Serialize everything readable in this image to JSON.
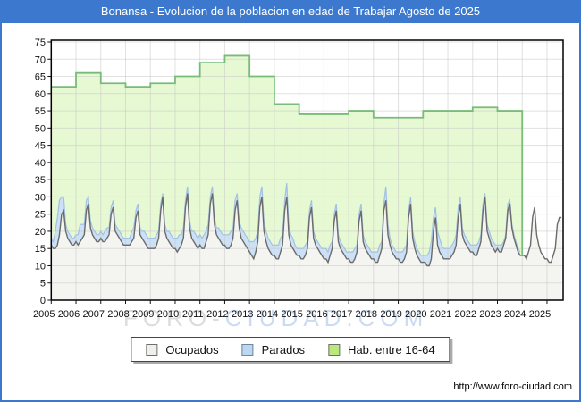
{
  "window": {
    "title": "Bonansa - Evolucion de la poblacion en edad de Trabajar Agosto de 2025"
  },
  "watermark": {
    "part1": "FORO-",
    "part2": "CIUDAD.COM"
  },
  "footer": {
    "url": "http://www.foro-ciudad.com"
  },
  "legend": {
    "items": [
      {
        "label": "Ocupados",
        "fill": "#EFEFEC",
        "border": "#6E6E6E"
      },
      {
        "label": "Parados",
        "fill": "#BDD7F0",
        "border": "#6E86A0"
      },
      {
        "label": "Hab. entre 16-64",
        "fill": "#B9E87E",
        "border": "#6E6E6E"
      }
    ]
  },
  "chart_data": {
    "type": "area",
    "title": "Bonansa - Evolucion de la poblacion en edad de Trabajar Agosto de 2025",
    "xlabel": "",
    "ylabel": "",
    "x_axis": {
      "tick_labels": [
        "2005",
        "2006",
        "2007",
        "2008",
        "2009",
        "2010",
        "2011",
        "2012",
        "2013",
        "2014",
        "2015",
        "2016",
        "2017",
        "2018",
        "2019",
        "2020",
        "2021",
        "2022",
        "2023",
        "2024",
        "2025"
      ]
    },
    "y_axis": {
      "min": 0,
      "max": 75,
      "step": 5,
      "tick_labels": [
        "0",
        "5",
        "10",
        "15",
        "20",
        "25",
        "30",
        "35",
        "40",
        "45",
        "50",
        "55",
        "60",
        "65",
        "70",
        "75"
      ]
    },
    "grid": true,
    "legend_position": "bottom",
    "colors": {
      "grid": "#C8C8C8",
      "plot_border": "#000000",
      "tick_text": "#111111"
    },
    "series": [
      {
        "name": "Hab. entre 16-64",
        "kind": "annual_step",
        "start_year": 2005,
        "values": [
          62,
          66,
          63,
          62,
          63,
          65,
          69,
          71,
          65,
          57,
          54,
          54,
          55,
          53,
          53,
          55,
          55,
          56,
          55
        ],
        "fill": "#E7F9D3",
        "stroke": "#79BC79"
      },
      {
        "name": "Ocupados",
        "kind": "monthly",
        "start": "2005-01",
        "values": [
          16,
          15,
          15,
          16,
          19,
          25,
          26,
          20,
          18,
          17,
          16,
          16,
          17,
          16,
          17,
          18,
          19,
          26,
          28,
          21,
          19,
          18,
          17,
          17,
          18,
          17,
          17,
          18,
          19,
          25,
          27,
          20,
          19,
          18,
          17,
          16,
          16,
          16,
          16,
          17,
          18,
          24,
          26,
          19,
          18,
          17,
          16,
          15,
          15,
          15,
          15,
          16,
          18,
          26,
          30,
          20,
          18,
          17,
          16,
          15,
          15,
          14,
          15,
          16,
          18,
          27,
          31,
          21,
          18,
          17,
          16,
          15,
          16,
          15,
          15,
          17,
          19,
          28,
          31,
          22,
          19,
          18,
          17,
          16,
          16,
          15,
          15,
          16,
          18,
          26,
          29,
          21,
          18,
          17,
          16,
          15,
          14,
          13,
          12,
          14,
          17,
          27,
          30,
          20,
          17,
          15,
          14,
          13,
          13,
          12,
          12,
          14,
          16,
          26,
          30,
          19,
          16,
          15,
          14,
          13,
          13,
          12,
          12,
          13,
          15,
          24,
          27,
          18,
          16,
          15,
          14,
          13,
          12,
          12,
          11,
          13,
          15,
          23,
          26,
          17,
          15,
          14,
          13,
          12,
          12,
          11,
          11,
          12,
          14,
          23,
          26,
          17,
          15,
          14,
          13,
          12,
          12,
          11,
          11,
          13,
          15,
          26,
          29,
          19,
          16,
          14,
          13,
          12,
          12,
          11,
          11,
          12,
          14,
          24,
          28,
          18,
          15,
          13,
          12,
          11,
          11,
          11,
          10,
          10,
          12,
          20,
          24,
          16,
          14,
          13,
          12,
          12,
          12,
          12,
          13,
          14,
          16,
          24,
          28,
          19,
          17,
          16,
          15,
          14,
          14,
          13,
          13,
          15,
          17,
          26,
          30,
          20,
          18,
          16,
          15,
          14,
          15,
          14,
          14,
          16,
          18,
          26,
          28,
          21,
          18,
          16,
          14,
          13,
          13,
          13,
          12,
          14,
          16,
          24,
          27,
          19,
          16,
          14,
          13,
          12,
          12,
          11,
          11,
          13,
          15,
          22,
          24,
          24
        ],
        "fill": "#F4F4F0",
        "stroke": "#6B6B6B"
      },
      {
        "name": "Parados",
        "kind": "monthly_stacked_on_ocupados",
        "start": "2005-01",
        "values": [
          2,
          2,
          5,
          8,
          10,
          5,
          4,
          2,
          2,
          2,
          2,
          2,
          2,
          3,
          5,
          4,
          3,
          3,
          2,
          2,
          2,
          2,
          2,
          2,
          2,
          2,
          3,
          3,
          2,
          2,
          2,
          2,
          2,
          2,
          2,
          2,
          2,
          2,
          2,
          3,
          3,
          2,
          2,
          2,
          2,
          3,
          3,
          3,
          3,
          3,
          3,
          3,
          2,
          2,
          1,
          2,
          2,
          3,
          3,
          3,
          3,
          4,
          4,
          3,
          3,
          2,
          2,
          2,
          2,
          3,
          3,
          3,
          3,
          3,
          4,
          3,
          3,
          2,
          2,
          2,
          2,
          3,
          3,
          3,
          3,
          4,
          4,
          4,
          3,
          3,
          2,
          2,
          3,
          3,
          3,
          3,
          3,
          4,
          5,
          4,
          3,
          3,
          3,
          3,
          3,
          3,
          3,
          3,
          3,
          4,
          4,
          4,
          3,
          3,
          4,
          3,
          3,
          3,
          2,
          2,
          2,
          3,
          3,
          3,
          2,
          2,
          2,
          2,
          2,
          2,
          2,
          2,
          3,
          3,
          3,
          3,
          2,
          2,
          2,
          2,
          2,
          2,
          2,
          2,
          2,
          3,
          3,
          3,
          2,
          2,
          2,
          2,
          2,
          2,
          2,
          2,
          2,
          3,
          3,
          3,
          2,
          2,
          4,
          3,
          2,
          2,
          2,
          2,
          2,
          3,
          3,
          3,
          2,
          2,
          2,
          2,
          2,
          2,
          2,
          2,
          2,
          2,
          3,
          4,
          5,
          4,
          3,
          4,
          4,
          3,
          3,
          3,
          3,
          3,
          3,
          3,
          3,
          3,
          2,
          2,
          2,
          2,
          2,
          2,
          2,
          3,
          3,
          2,
          2,
          2,
          1,
          2,
          2,
          2,
          2,
          2,
          1,
          2,
          2,
          1,
          1,
          2,
          1,
          1,
          1,
          1,
          1,
          1
        ],
        "fill": "#CCE0F6",
        "stroke": "#A3C1E2"
      }
    ]
  }
}
